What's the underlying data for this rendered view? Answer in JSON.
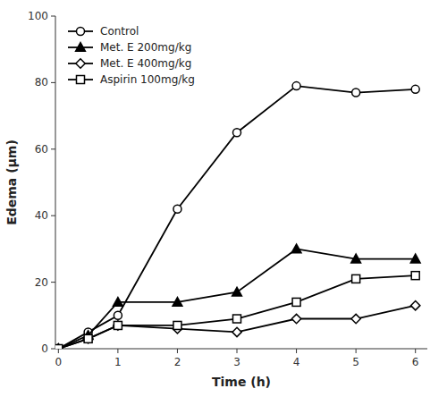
{
  "chart_data": {
    "type": "line",
    "xlabel": "Time (h)",
    "ylabel": "Edema (μm)",
    "x": [
      0,
      0.5,
      1,
      2,
      3,
      4,
      5,
      6
    ],
    "series": [
      {
        "name": "Control",
        "color": "#000000",
        "marker": "open-circle",
        "values": [
          0,
          5,
          10,
          42,
          65,
          79,
          77,
          78
        ]
      },
      {
        "name": "Met. E 200mg/kg",
        "color": "#000000",
        "marker": "filled-triangle",
        "values": [
          0,
          4,
          14,
          14,
          17,
          30,
          27,
          27
        ]
      },
      {
        "name": "Met. E 400mg/kg",
        "color": "#000000",
        "marker": "open-diamond",
        "values": [
          0,
          3,
          7,
          6,
          5,
          9,
          9,
          13
        ]
      },
      {
        "name": "Aspirin 100mg/kg",
        "color": "#000000",
        "marker": "open-square",
        "values": [
          0,
          3,
          7,
          7,
          9,
          14,
          21,
          22
        ]
      }
    ],
    "xlim": [
      -0.05,
      6.2
    ],
    "ylim": [
      0,
      100
    ],
    "xticks": [
      0,
      1,
      2,
      3,
      4,
      5,
      6
    ],
    "yticks": [
      0,
      20,
      40,
      60,
      80,
      100
    ],
    "legend": "upper left",
    "grid": false
  }
}
